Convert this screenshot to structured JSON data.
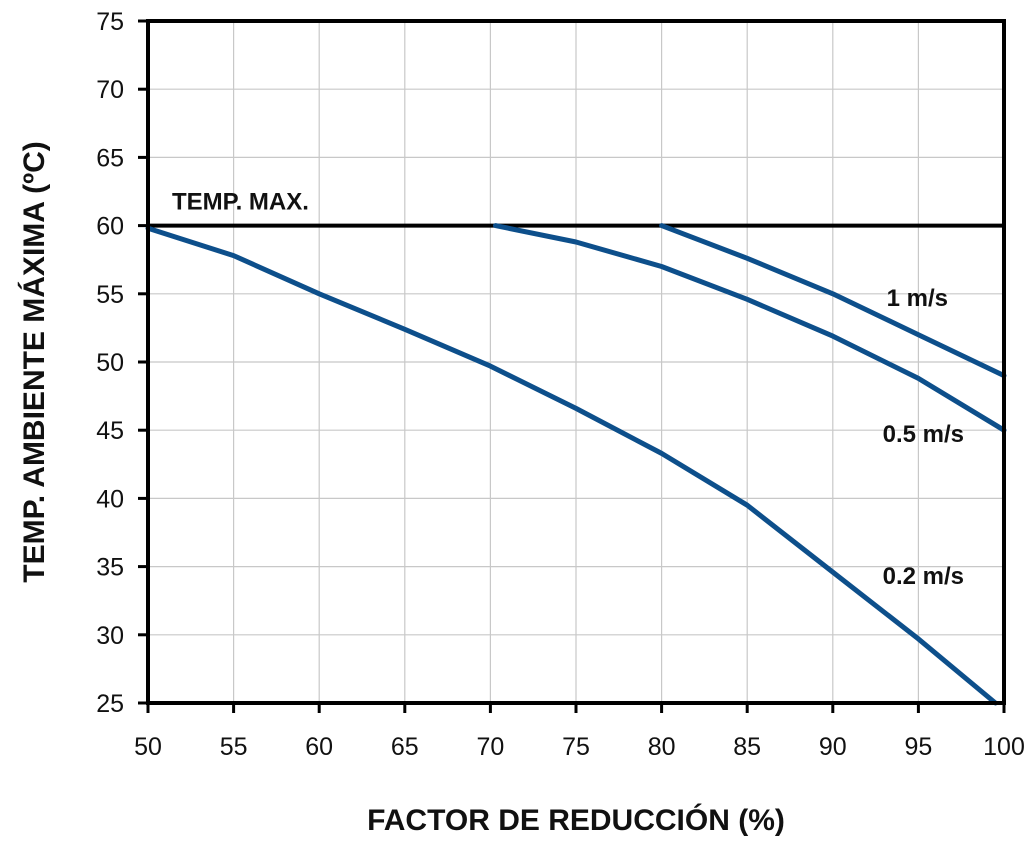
{
  "chart_data": {
    "type": "line",
    "xlabel": "FACTOR DE REDUCCIÓN (%)",
    "ylabel": "TEMP. AMBIENTE MÁXIMA (ºC)",
    "xlim": [
      50,
      100
    ],
    "ylim": [
      25,
      75
    ],
    "xticks": [
      50,
      55,
      60,
      65,
      70,
      75,
      80,
      85,
      90,
      95,
      100
    ],
    "yticks": [
      25,
      30,
      35,
      40,
      45,
      50,
      55,
      60,
      65,
      70,
      75
    ],
    "grid": true,
    "reference_line": {
      "y": 60,
      "label": "TEMP. MAX."
    },
    "series": [
      {
        "name": "0.2 m/s",
        "color": "#0d4f8b",
        "x": [
          50,
          55,
          60,
          65,
          70,
          75,
          80,
          85,
          90,
          95,
          99.5
        ],
        "y": [
          59.8,
          57.8,
          55,
          52.4,
          49.7,
          46.6,
          43.3,
          39.5,
          34.6,
          29.7,
          25
        ]
      },
      {
        "name": "0.5 m/s",
        "color": "#0d4f8b",
        "x": [
          70.3,
          75,
          80,
          85,
          90,
          95,
          100
        ],
        "y": [
          60,
          58.8,
          57,
          54.6,
          51.9,
          48.8,
          45
        ]
      },
      {
        "name": "1 m/s",
        "color": "#0d4f8b",
        "x": [
          80,
          85,
          90,
          95,
          100
        ],
        "y": [
          60,
          57.6,
          55,
          52,
          49
        ]
      }
    ]
  }
}
